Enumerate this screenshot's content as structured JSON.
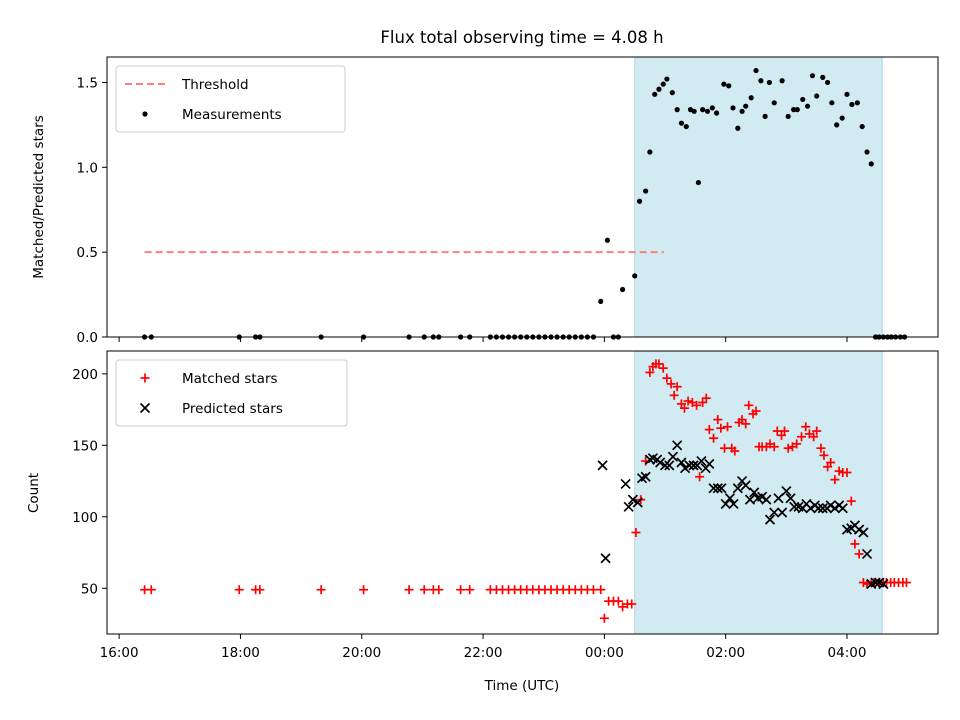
{
  "figure": {
    "title": "Flux total observing time = 4.08 h",
    "xlabel": "Time (UTC)",
    "xticks": [
      {
        "h": 16,
        "label": "16:00"
      },
      {
        "h": 18,
        "label": "18:00"
      },
      {
        "h": 20,
        "label": "20:00"
      },
      {
        "h": 22,
        "label": "22:00"
      },
      {
        "h": 24,
        "label": "00:00"
      },
      {
        "h": 26,
        "label": "02:00"
      },
      {
        "h": 28,
        "label": "04:00"
      }
    ],
    "shaded_span": {
      "start": 24.5,
      "end": 28.58,
      "color": "#add8e6"
    }
  },
  "chart_data": [
    {
      "type": "scatter",
      "ylabel": "Matched/Predicted stars",
      "xlim": [
        15.8,
        29.5
      ],
      "ylim": [
        0,
        1.65
      ],
      "yticks": [
        0.0,
        0.5,
        1.0,
        1.5
      ],
      "ytick_labels": [
        "0.0",
        "0.5",
        "1.0",
        "1.5"
      ],
      "legend_position": "top-left",
      "threshold": {
        "name": "Threshold",
        "y": 0.5,
        "x_range": [
          16.42,
          24.98
        ],
        "color": "#ff7f7f"
      },
      "series": [
        {
          "name": "Measurements",
          "color": "#000000",
          "marker": "dot",
          "x": [
            16.42,
            16.53,
            17.98,
            18.25,
            18.32,
            19.33,
            20.03,
            20.78,
            21.03,
            21.18,
            21.27,
            21.63,
            21.78,
            22.12,
            22.22,
            22.32,
            22.42,
            22.52,
            22.62,
            22.72,
            22.82,
            22.92,
            23.02,
            23.12,
            23.22,
            23.32,
            23.42,
            23.52,
            23.62,
            23.72,
            23.82,
            23.94,
            24.05,
            24.15,
            24.23,
            24.3,
            24.5,
            24.58,
            24.68,
            24.75,
            24.83,
            24.9,
            24.97,
            25.03,
            25.12,
            25.2,
            25.27,
            25.35,
            25.42,
            25.48,
            25.55,
            25.62,
            25.7,
            25.78,
            25.85,
            25.97,
            26.05,
            26.12,
            26.2,
            26.27,
            26.33,
            26.42,
            26.5,
            26.58,
            26.65,
            26.72,
            26.8,
            26.93,
            27.03,
            27.12,
            27.18,
            27.27,
            27.35,
            27.43,
            27.5,
            27.6,
            27.68,
            27.75,
            27.83,
            27.92,
            28.0,
            28.08,
            28.17,
            28.25,
            28.33,
            28.4,
            28.47,
            28.53,
            28.6,
            28.67,
            28.73,
            28.8,
            28.88,
            28.95
          ],
          "y": [
            0,
            0,
            0,
            0,
            0,
            0,
            0,
            0,
            0,
            0,
            0,
            0,
            0,
            0,
            0,
            0,
            0,
            0,
            0,
            0,
            0,
            0,
            0,
            0,
            0,
            0,
            0,
            0,
            0,
            0,
            0,
            0.21,
            0.57,
            0,
            0,
            0.28,
            0.36,
            0.8,
            0.86,
            1.09,
            1.43,
            1.46,
            1.49,
            1.52,
            1.44,
            1.34,
            1.26,
            1.24,
            1.34,
            1.33,
            0.91,
            1.34,
            1.33,
            1.35,
            1.32,
            1.49,
            1.48,
            1.35,
            1.23,
            1.33,
            1.36,
            1.41,
            1.57,
            1.51,
            1.3,
            1.5,
            1.38,
            1.51,
            1.3,
            1.34,
            1.34,
            1.4,
            1.36,
            1.54,
            1.42,
            1.53,
            1.5,
            1.38,
            1.25,
            1.29,
            1.43,
            1.37,
            1.38,
            1.24,
            1.09,
            1.02,
            0,
            0,
            0,
            0,
            0,
            0,
            0,
            0
          ]
        }
      ]
    },
    {
      "type": "scatter",
      "ylabel": "Count",
      "xlim": [
        15.8,
        29.5
      ],
      "ylim": [
        18,
        216
      ],
      "yticks": [
        50,
        100,
        150,
        200
      ],
      "ytick_labels": [
        "50",
        "100",
        "150",
        "200"
      ],
      "legend_position": "top-left",
      "series": [
        {
          "name": "Matched stars",
          "color": "#ff0000",
          "marker": "plus",
          "x": [
            16.42,
            16.53,
            17.98,
            18.25,
            18.32,
            19.33,
            20.03,
            20.78,
            21.03,
            21.18,
            21.27,
            21.63,
            21.78,
            22.12,
            22.22,
            22.32,
            22.42,
            22.52,
            22.62,
            22.72,
            22.82,
            22.92,
            23.02,
            23.12,
            23.22,
            23.32,
            23.42,
            23.52,
            23.62,
            23.72,
            23.82,
            23.94,
            24.0,
            24.07,
            24.15,
            24.23,
            24.3,
            24.38,
            24.45,
            24.52,
            24.6,
            24.68,
            24.75,
            24.8,
            24.85,
            24.9,
            24.97,
            25.03,
            25.1,
            25.15,
            25.2,
            25.27,
            25.32,
            25.38,
            25.45,
            25.52,
            25.57,
            25.62,
            25.68,
            25.73,
            25.8,
            25.87,
            25.92,
            25.98,
            26.03,
            26.1,
            26.15,
            26.22,
            26.27,
            26.33,
            26.38,
            26.45,
            26.5,
            26.55,
            26.6,
            26.67,
            26.73,
            26.8,
            26.85,
            26.92,
            26.97,
            27.03,
            27.1,
            27.17,
            27.25,
            27.32,
            27.38,
            27.45,
            27.5,
            27.57,
            27.62,
            27.68,
            27.73,
            27.8,
            27.87,
            27.93,
            28.0,
            28.07,
            28.13,
            28.2,
            28.27,
            28.33,
            28.4,
            28.45,
            28.53,
            28.6,
            28.65,
            28.72,
            28.78,
            28.85,
            28.92,
            28.98
          ],
          "y": [
            49,
            49,
            49,
            49,
            49,
            49,
            49,
            49,
            49,
            49,
            49,
            49,
            49,
            49,
            49,
            49,
            49,
            49,
            49,
            49,
            49,
            49,
            49,
            49,
            49,
            49,
            49,
            49,
            49,
            49,
            49,
            49,
            29,
            41,
            41,
            41,
            37,
            39,
            39,
            89,
            112,
            139,
            201,
            205,
            207,
            207,
            204,
            197,
            193,
            185,
            191,
            179,
            176,
            181,
            180,
            178,
            128,
            180,
            183,
            161,
            155,
            168,
            162,
            148,
            163,
            148,
            146,
            166,
            168,
            165,
            178,
            172,
            174,
            149,
            149,
            149,
            151,
            149,
            160,
            157,
            160,
            148,
            149,
            151,
            156,
            163,
            158,
            156,
            160,
            148,
            143,
            135,
            138,
            126,
            132,
            131,
            131,
            111,
            81,
            74,
            54,
            53,
            54,
            54,
            54,
            54,
            54,
            54,
            54,
            54,
            54,
            54
          ],
          "_note_removed": true
        },
        {
          "name": "Predicted stars",
          "color": "#000000",
          "marker": "x",
          "x": [
            23.97,
            24.02,
            24.35,
            24.4,
            24.47,
            24.55,
            24.62,
            24.68,
            24.75,
            24.8,
            24.87,
            24.92,
            25.0,
            25.07,
            25.13,
            25.2,
            25.27,
            25.33,
            25.4,
            25.47,
            25.53,
            25.6,
            25.67,
            25.73,
            25.8,
            25.87,
            25.93,
            26.0,
            26.07,
            26.13,
            26.2,
            26.27,
            26.33,
            26.4,
            26.47,
            26.53,
            26.6,
            26.67,
            26.73,
            26.8,
            26.87,
            26.93,
            27.0,
            27.07,
            27.13,
            27.2,
            27.27,
            27.33,
            27.4,
            27.47,
            27.53,
            27.6,
            27.67,
            27.73,
            27.8,
            27.87,
            27.93,
            28.0,
            28.07,
            28.13,
            28.2,
            28.27,
            28.33,
            28.4,
            28.47,
            28.53,
            28.6
          ],
          "y": [
            136,
            71,
            123,
            107,
            112,
            110,
            127,
            128,
            140,
            141,
            140,
            138,
            136,
            136,
            142,
            150,
            138,
            134,
            136,
            136,
            136,
            139,
            134,
            137,
            120,
            120,
            120,
            109,
            113,
            109,
            120,
            125,
            122,
            112,
            117,
            113,
            114,
            112,
            98,
            103,
            113,
            103,
            118,
            113,
            107,
            107,
            106,
            109,
            106,
            108,
            106,
            106,
            106,
            108,
            106,
            108,
            106,
            91,
            92,
            94,
            91,
            89,
            74,
            53,
            54,
            54,
            53
          ]
        }
      ]
    }
  ]
}
